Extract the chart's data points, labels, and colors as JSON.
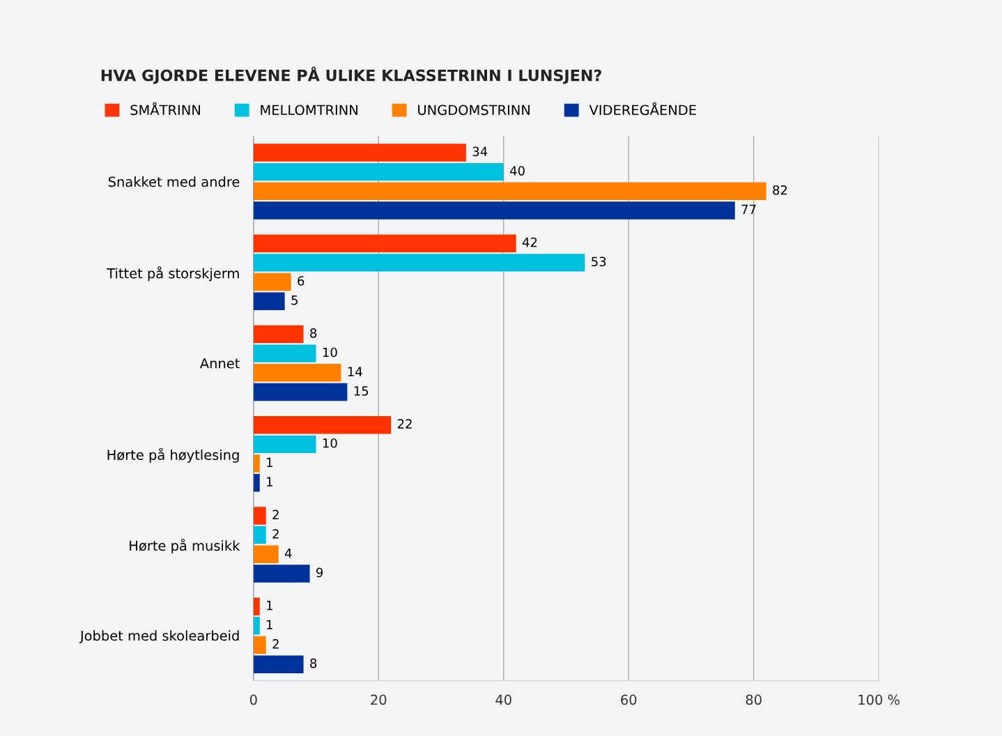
{
  "chart_data": {
    "type": "bar",
    "orientation": "horizontal",
    "title": "HVA GJORDE ELEVENE PÅ ULIKE KLASSETRINN I LUNSJEN?",
    "categories": [
      "Snakket med andre",
      "Tittet på storskjerm",
      "Annet",
      "Hørte på høytlesing",
      "Hørte på musikk",
      "Jobbet med skolearbeid"
    ],
    "series": [
      {
        "name": "SMÅTRINN",
        "color": "#ff3300",
        "values": [
          34,
          42,
          8,
          22,
          2,
          1
        ]
      },
      {
        "name": "MELLOMTRINN",
        "color": "#00c0e0",
        "values": [
          40,
          53,
          10,
          10,
          2,
          1
        ]
      },
      {
        "name": "UNGDOMSTRINN",
        "color": "#ff7f00",
        "values": [
          82,
          6,
          14,
          1,
          4,
          2
        ]
      },
      {
        "name": "VIDEREGÅENDE",
        "color": "#003399",
        "values": [
          77,
          5,
          15,
          1,
          9,
          8
        ]
      }
    ],
    "xlim": [
      0,
      100
    ],
    "xticks": [
      0,
      20,
      40,
      60,
      80,
      {
        "value": 100,
        "label": "100 %"
      }
    ],
    "grid": "x",
    "legend": "top left",
    "data_labels": true
  }
}
